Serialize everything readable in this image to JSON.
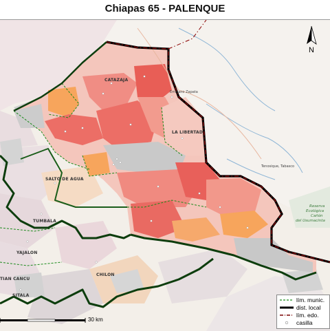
{
  "map": {
    "title": "Chiapas 65 - PALENQUE",
    "north_label": "N",
    "scale_label": "30 km",
    "municipalities": [
      "CATAZAJA",
      "LA LIBERTAD",
      "SALTO DE AGUA",
      "TUMBALA",
      "YAJALON",
      "CHILON",
      "SITALA",
      "TIAN CANCU"
    ],
    "places": [
      "Emiliano Zapata",
      "Tenosique, Tabasco"
    ],
    "reserve_lines": [
      "Reserva",
      "Ecológica",
      "Cañón",
      "del Usumacinta"
    ],
    "legend": [
      {
        "label": "lím. munic.",
        "color": "#1a8a1a",
        "style": "dashed"
      },
      {
        "label": "dist. local",
        "color": "#000000",
        "style": "thick"
      },
      {
        "label": "lím. edo.",
        "color": "#7a0000",
        "style": "dash-dot"
      },
      {
        "label": "casilla",
        "color": "#888888",
        "style": "circle"
      }
    ],
    "fill_colors": {
      "dark_red": "#ec6e66",
      "salmon": "#f3998a",
      "orange": "#f7a55c",
      "gray": "#cfcfcf",
      "background": "#f3efe9"
    }
  }
}
